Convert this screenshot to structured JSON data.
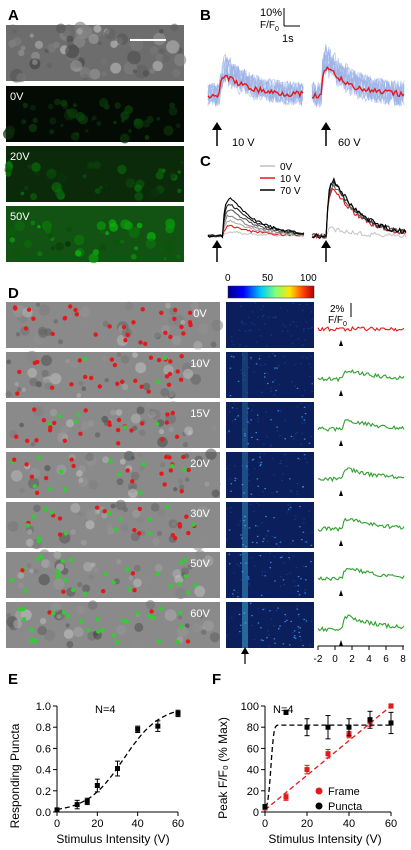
{
  "panels": {
    "A": {
      "letter": "A",
      "voltages": [
        "0V",
        "20V",
        "50V"
      ]
    },
    "B": {
      "letter": "B",
      "scale_y": "10%",
      "scale_y_unit": "F/F",
      "scale_y_sub": "0",
      "scale_x": "1s",
      "stim": [
        "10 V",
        "60 V"
      ]
    },
    "C": {
      "letter": "C",
      "legend": [
        {
          "label": "0V",
          "color": "#c0c0c0"
        },
        {
          "label": "10 V",
          "color": "#e31a1c"
        },
        {
          "label": "70 V",
          "color": "#000000"
        }
      ]
    },
    "D": {
      "letter": "D",
      "voltages": [
        "0V",
        "10V",
        "15V",
        "20V",
        "30V",
        "50V",
        "60V"
      ],
      "colorbar_ticks": [
        "0",
        "50",
        "100"
      ],
      "scale_label": "2%",
      "scale_unit": "F/F",
      "scale_sub": "0",
      "time_ticks": [
        "-2",
        "0",
        "2",
        "4",
        "6",
        "8"
      ],
      "trace_colors": [
        "#e31a1c",
        "#2ca02c",
        "#2ca02c",
        "#2ca02c",
        "#2ca02c",
        "#2ca02c",
        "#2ca02c"
      ]
    },
    "E": {
      "letter": "E",
      "annotation": "N=4"
    },
    "F": {
      "letter": "F",
      "annotation": "N=4"
    }
  },
  "colors": {
    "frame": "#e31a1c",
    "puncta": "#000000",
    "green_signal": "#2ca02c",
    "red_signal": "#e31a1c"
  },
  "chart_data": [
    {
      "panel": "E",
      "type": "scatter",
      "xlabel": "Stimulus Intensity (V)",
      "ylabel": "Responding Puncta",
      "xlim": [
        0,
        60
      ],
      "ylim": [
        0,
        1.0
      ],
      "xticks": [
        "0",
        "20",
        "40",
        "60"
      ],
      "yticks": [
        "0.0",
        "0.2",
        "0.4",
        "0.6",
        "0.8",
        "1.0"
      ],
      "series": [
        {
          "x": [
            0,
            10,
            15,
            20,
            30,
            40,
            50,
            60
          ],
          "y": [
            0.02,
            0.07,
            0.1,
            0.25,
            0.41,
            0.78,
            0.81,
            0.93
          ],
          "err": [
            0.01,
            0.04,
            0.03,
            0.06,
            0.07,
            0.03,
            0.05,
            0.03
          ],
          "fit": "sigmoid"
        }
      ]
    },
    {
      "panel": "F",
      "type": "scatter",
      "xlabel": "Stimulus Intensity (V)",
      "ylabel": "Peak F/F₀ (% Max)",
      "xlim": [
        0,
        60
      ],
      "ylim": [
        0,
        100
      ],
      "xticks": [
        "0",
        "20",
        "40",
        "60"
      ],
      "yticks": [
        "0",
        "20",
        "40",
        "60",
        "80",
        "100"
      ],
      "series": [
        {
          "name": "Frame",
          "color": "#e31a1c",
          "x": [
            0,
            10,
            20,
            30,
            40,
            50,
            60
          ],
          "y": [
            4,
            14,
            40,
            55,
            73,
            85,
            100
          ],
          "err": [
            2,
            3,
            4,
            4,
            3,
            4,
            2
          ],
          "fit": "linear"
        },
        {
          "name": "Puncta",
          "color": "#000000",
          "x": [
            0,
            10,
            20,
            30,
            40,
            50,
            60
          ],
          "y": [
            5,
            94,
            80,
            80,
            80,
            87,
            84
          ],
          "err": [
            2,
            2,
            8,
            11,
            8,
            8,
            10
          ],
          "fit": "step"
        }
      ]
    }
  ]
}
